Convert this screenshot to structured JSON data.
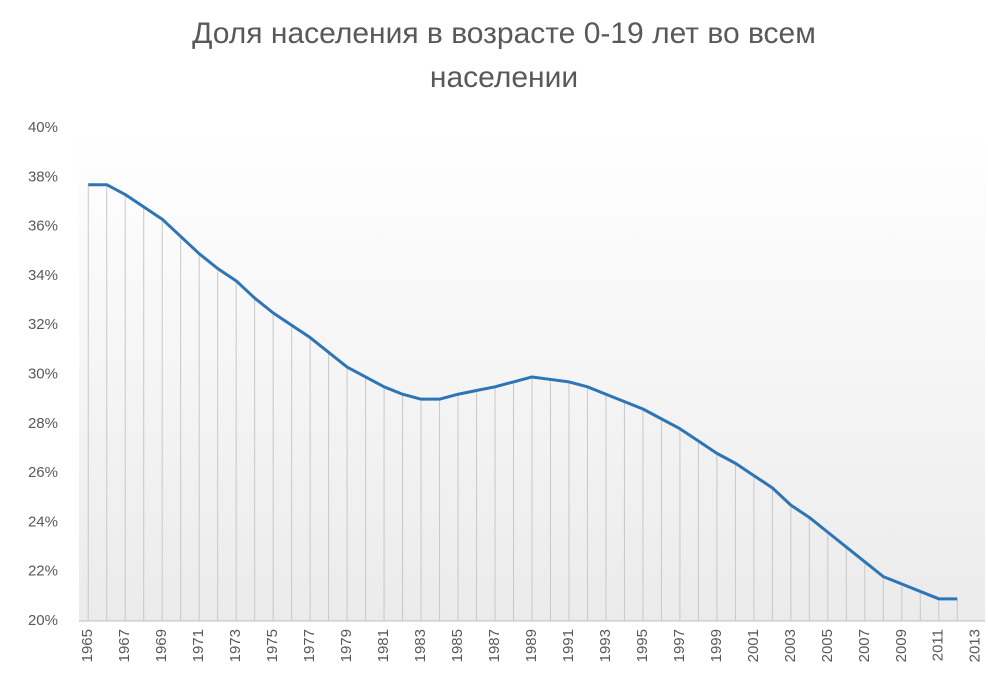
{
  "chart_data": {
    "type": "line",
    "title": "Доля населения  в возрасте  0-19 лет во всем населении",
    "categories": [
      "1965",
      null,
      "1967",
      null,
      "1969",
      null,
      "1971",
      null,
      "1973",
      null,
      "1975",
      null,
      "1977",
      null,
      "1979",
      null,
      "1981",
      null,
      "1983",
      null,
      "1985",
      null,
      "1987",
      null,
      "1989",
      null,
      "1991",
      null,
      "1993",
      null,
      "1995",
      null,
      "1997",
      null,
      "1999",
      null,
      "2001",
      null,
      "2003",
      null,
      "2005",
      null,
      "2007",
      null,
      "2009",
      null,
      "2011",
      null,
      "2013"
    ],
    "values": [
      37.7,
      37.7,
      37.3,
      36.8,
      36.3,
      35.6,
      34.9,
      34.3,
      33.8,
      33.1,
      32.5,
      32.0,
      31.5,
      30.9,
      30.3,
      29.9,
      29.5,
      29.2,
      29.0,
      29.0,
      29.2,
      29.35,
      29.5,
      29.7,
      29.9,
      29.8,
      29.7,
      29.5,
      29.2,
      28.9,
      28.6,
      28.2,
      27.8,
      27.3,
      26.8,
      26.4,
      25.9,
      25.4,
      24.7,
      24.2,
      23.6,
      23.0,
      22.4,
      21.8,
      21.5,
      21.2,
      20.9,
      20.9,
      null
    ],
    "color": "#2e75b6",
    "ylim": [
      20,
      40
    ],
    "yticks": [
      {
        "value": 20,
        "label": "20%"
      },
      {
        "value": 22,
        "label": "22%"
      },
      {
        "value": 24,
        "label": "24%"
      },
      {
        "value": 26,
        "label": "26%"
      },
      {
        "value": 28,
        "label": "28%"
      },
      {
        "value": 30,
        "label": "30%"
      },
      {
        "value": 32,
        "label": "32%"
      },
      {
        "value": 34,
        "label": "34%"
      },
      {
        "value": 36,
        "label": "36%"
      },
      {
        "value": 38,
        "label": "38%"
      },
      {
        "value": 40,
        "label": "40%"
      }
    ],
    "drop_lines": true
  }
}
